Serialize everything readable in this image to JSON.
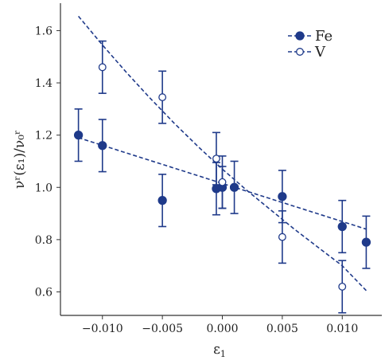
{
  "chart_data": {
    "type": "scatter",
    "xlabel": "ε",
    "xlabel_sub": "1",
    "ylabel": "νʳ(ε₁)/ν₀ʳ",
    "xlim": [
      -0.0135,
      0.0133
    ],
    "ylim": [
      0.51,
      1.705
    ],
    "x_ticks": [
      -0.01,
      -0.005,
      0.0,
      0.005,
      0.01
    ],
    "x_tick_labels": [
      "−0.010",
      "−0.005",
      "0.000",
      "0.005",
      "0.010"
    ],
    "y_ticks": [
      0.6,
      0.8,
      1.0,
      1.2,
      1.4,
      1.6
    ],
    "y_tick_labels": [
      "0.6",
      "0.8",
      "1.0",
      "1.2",
      "1.4",
      "1.6"
    ],
    "grid": false,
    "legend_position": "top-right",
    "color": "#1f3a8a",
    "series": [
      {
        "name": "Fe",
        "marker": "filled-circle",
        "points": [
          {
            "x": -0.012,
            "y": 1.2,
            "err": 0.1
          },
          {
            "x": -0.01,
            "y": 1.16,
            "err": 0.1
          },
          {
            "x": -0.005,
            "y": 0.95,
            "err": 0.1
          },
          {
            "x": -0.0005,
            "y": 0.995,
            "err": 0.1
          },
          {
            "x": 0.0,
            "y": 1.0,
            "err": 0.08
          },
          {
            "x": 0.001,
            "y": 1.0,
            "err": 0.1
          },
          {
            "x": 0.005,
            "y": 0.965,
            "err": 0.1
          },
          {
            "x": 0.01,
            "y": 0.85,
            "err": 0.1
          },
          {
            "x": 0.012,
            "y": 0.79,
            "err": 0.1
          }
        ],
        "fit": {
          "x": [
            -0.012,
            0.012
          ],
          "y": [
            1.19,
            0.84
          ]
        }
      },
      {
        "name": "V",
        "marker": "open-circle",
        "points": [
          {
            "x": -0.01,
            "y": 1.46,
            "err": 0.1
          },
          {
            "x": -0.005,
            "y": 1.345,
            "err": 0.1
          },
          {
            "x": -0.0005,
            "y": 1.11,
            "err": 0.1
          },
          {
            "x": 0.0,
            "y": 1.02,
            "err": 0.1
          },
          {
            "x": 0.005,
            "y": 0.81,
            "err": 0.1
          },
          {
            "x": 0.01,
            "y": 0.62,
            "err": 0.1
          }
        ],
        "fit": {
          "x": [
            -0.012,
            -0.01,
            -0.008,
            -0.006,
            -0.004,
            -0.002,
            0.0,
            0.002,
            0.004,
            0.006,
            0.008,
            0.01,
            0.012
          ],
          "y": [
            1.655,
            1.545,
            1.44,
            1.34,
            1.245,
            1.155,
            1.07,
            0.99,
            0.915,
            0.84,
            0.77,
            0.7,
            0.605
          ]
        }
      }
    ]
  }
}
